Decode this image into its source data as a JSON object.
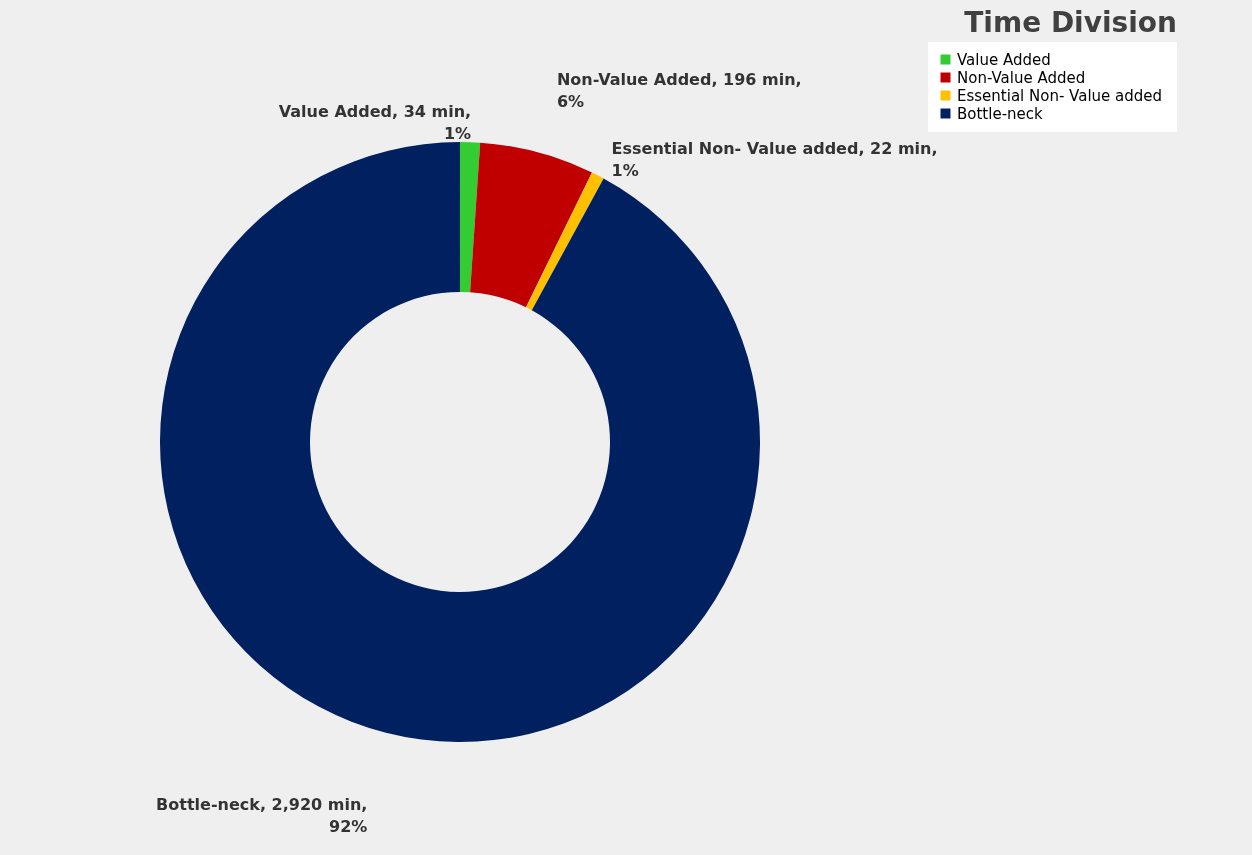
{
  "chart_data": {
    "type": "donut",
    "title": "Time Division",
    "categories": [
      "Value Added",
      "Non-Value Added",
      "Essential Non- Value  added",
      "Bottle-neck"
    ],
    "values": [
      34,
      196,
      22,
      2920
    ],
    "colors": [
      "#33cc33",
      "#c00000",
      "#ffc000",
      "#002060"
    ],
    "value_labels": [
      "Value Added, 34 min, 1%",
      "Non-Value Added, 196 min, 6%",
      "Essential Non- Value added, 22 min, 1%",
      "Bottle-neck,  2,920 min, 92%"
    ],
    "legend": "right"
  }
}
